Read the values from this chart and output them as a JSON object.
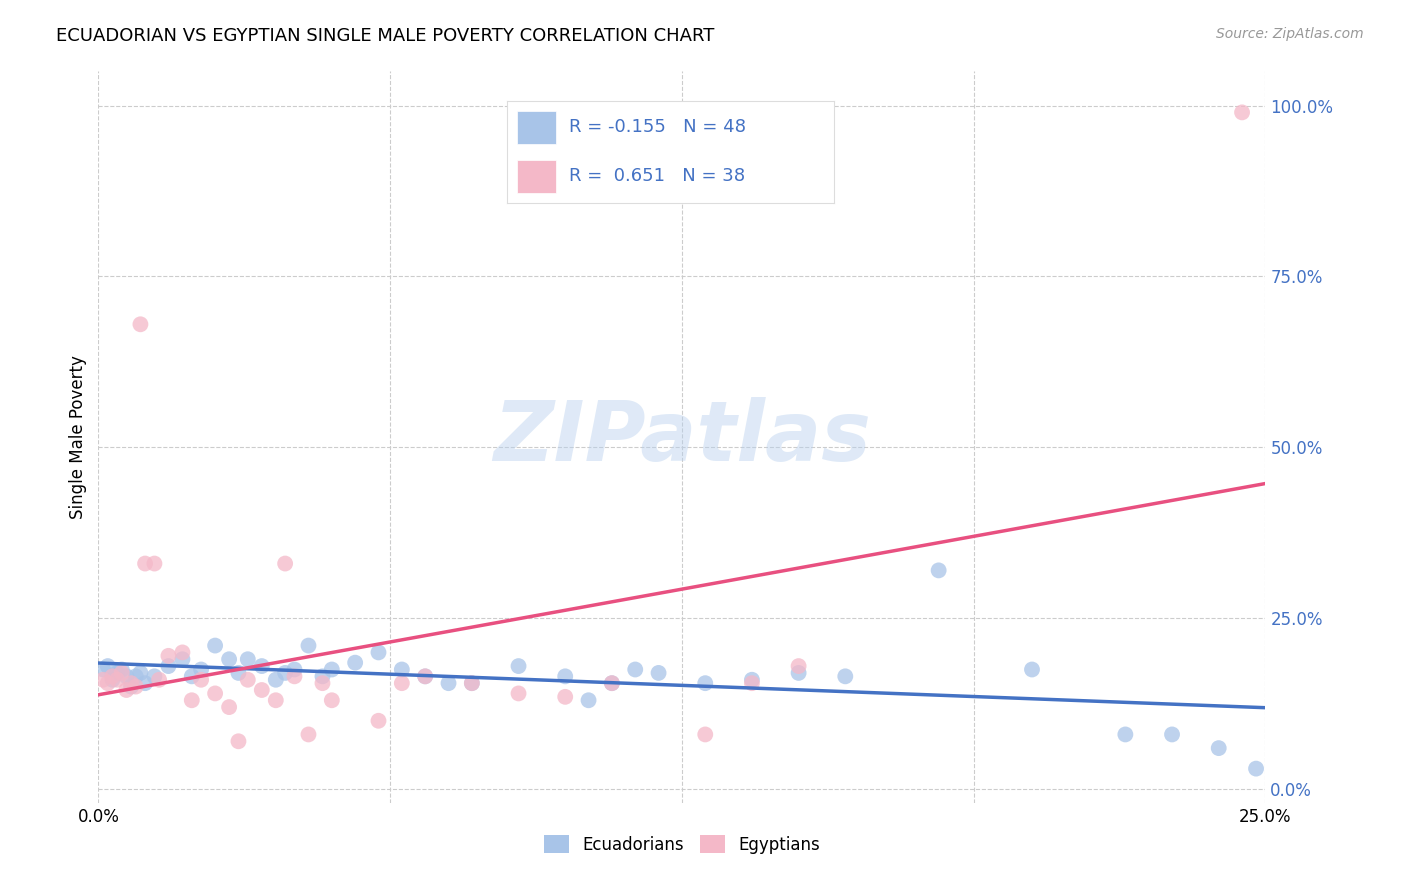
{
  "title": "ECUADORIAN VS EGYPTIAN SINGLE MALE POVERTY CORRELATION CHART",
  "source": "Source: ZipAtlas.com",
  "ylabel": "Single Male Poverty",
  "watermark": "ZIPatlas",
  "legend_label_blue": "Ecuadorians",
  "legend_label_pink": "Egyptians",
  "R_blue": -0.155,
  "N_blue": 48,
  "R_pink": 0.651,
  "N_pink": 38,
  "x_min": 0.0,
  "x_max": 25.0,
  "y_min": -2.0,
  "y_max": 105.0,
  "blue_color": "#a8c4e8",
  "blue_line_color": "#4472c4",
  "pink_color": "#f4b8c8",
  "pink_line_color": "#e85080",
  "blue_points": [
    [
      0.1,
      17.5
    ],
    [
      0.2,
      18.0
    ],
    [
      0.3,
      16.0
    ],
    [
      0.4,
      17.0
    ],
    [
      0.5,
      17.5
    ],
    [
      0.6,
      16.5
    ],
    [
      0.7,
      15.0
    ],
    [
      0.8,
      16.5
    ],
    [
      0.9,
      17.0
    ],
    [
      1.0,
      15.5
    ],
    [
      1.2,
      16.5
    ],
    [
      1.5,
      18.0
    ],
    [
      1.8,
      19.0
    ],
    [
      2.0,
      16.5
    ],
    [
      2.2,
      17.5
    ],
    [
      2.5,
      21.0
    ],
    [
      2.8,
      19.0
    ],
    [
      3.0,
      17.0
    ],
    [
      3.2,
      19.0
    ],
    [
      3.5,
      18.0
    ],
    [
      3.8,
      16.0
    ],
    [
      4.0,
      17.0
    ],
    [
      4.2,
      17.5
    ],
    [
      4.5,
      21.0
    ],
    [
      4.8,
      16.5
    ],
    [
      5.0,
      17.5
    ],
    [
      5.5,
      18.5
    ],
    [
      6.0,
      20.0
    ],
    [
      6.5,
      17.5
    ],
    [
      7.0,
      16.5
    ],
    [
      7.5,
      15.5
    ],
    [
      8.0,
      15.5
    ],
    [
      9.0,
      18.0
    ],
    [
      10.0,
      16.5
    ],
    [
      10.5,
      13.0
    ],
    [
      11.0,
      15.5
    ],
    [
      11.5,
      17.5
    ],
    [
      12.0,
      17.0
    ],
    [
      13.0,
      15.5
    ],
    [
      14.0,
      16.0
    ],
    [
      15.0,
      17.0
    ],
    [
      16.0,
      16.5
    ],
    [
      18.0,
      32.0
    ],
    [
      20.0,
      17.5
    ],
    [
      22.0,
      8.0
    ],
    [
      23.0,
      8.0
    ],
    [
      24.0,
      6.0
    ],
    [
      24.8,
      3.0
    ]
  ],
  "pink_points": [
    [
      0.1,
      16.0
    ],
    [
      0.2,
      15.5
    ],
    [
      0.3,
      16.5
    ],
    [
      0.4,
      16.0
    ],
    [
      0.5,
      17.0
    ],
    [
      0.6,
      14.5
    ],
    [
      0.7,
      15.5
    ],
    [
      0.8,
      15.0
    ],
    [
      0.9,
      68.0
    ],
    [
      1.0,
      33.0
    ],
    [
      1.2,
      33.0
    ],
    [
      1.3,
      16.0
    ],
    [
      1.5,
      19.5
    ],
    [
      1.8,
      20.0
    ],
    [
      2.0,
      13.0
    ],
    [
      2.2,
      16.0
    ],
    [
      2.5,
      14.0
    ],
    [
      2.8,
      12.0
    ],
    [
      3.0,
      7.0
    ],
    [
      3.2,
      16.0
    ],
    [
      3.5,
      14.5
    ],
    [
      3.8,
      13.0
    ],
    [
      4.0,
      33.0
    ],
    [
      4.2,
      16.5
    ],
    [
      4.5,
      8.0
    ],
    [
      4.8,
      15.5
    ],
    [
      5.0,
      13.0
    ],
    [
      6.0,
      10.0
    ],
    [
      6.5,
      15.5
    ],
    [
      7.0,
      16.5
    ],
    [
      8.0,
      15.5
    ],
    [
      9.0,
      14.0
    ],
    [
      10.0,
      13.5
    ],
    [
      11.0,
      15.5
    ],
    [
      13.0,
      8.0
    ],
    [
      14.0,
      15.5
    ],
    [
      15.0,
      18.0
    ],
    [
      24.5,
      99.0
    ]
  ],
  "ytick_values": [
    0.0,
    25.0,
    50.0,
    75.0,
    100.0
  ],
  "xtick_values": [
    0.0,
    6.25,
    12.5,
    18.75,
    25.0
  ],
  "background_color": "#ffffff",
  "grid_color": "#cccccc"
}
